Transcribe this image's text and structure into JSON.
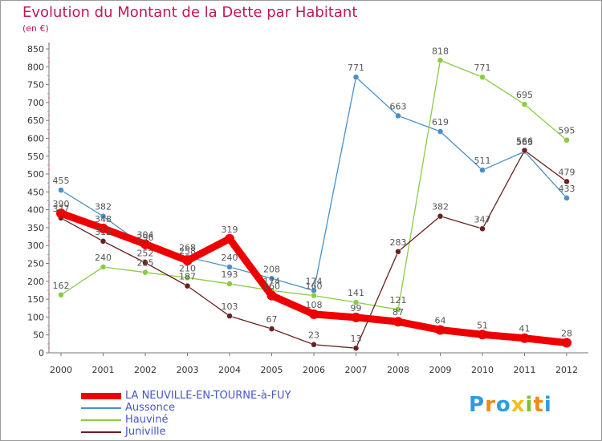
{
  "chart_data": {
    "type": "line",
    "title": "Evolution du Montant de la Dette par Habitant",
    "subtitle": "(en €)",
    "x": [
      "2000",
      "2001",
      "2002",
      "2003",
      "2004",
      "2005",
      "2006",
      "2007",
      "2008",
      "2009",
      "2010",
      "2011",
      "2012"
    ],
    "yticks": [
      "0",
      "50",
      "100",
      "150",
      "200",
      "250",
      "300",
      "350",
      "400",
      "450",
      "500",
      "550",
      "600",
      "650",
      "700",
      "750",
      "800",
      "850"
    ],
    "ylim": [
      0,
      850
    ],
    "grid": false,
    "legend_position": "bottom-left",
    "series": [
      {
        "name": "LA NEUVILLE-EN-TOURNE-à-FUY",
        "color": "#ee0000",
        "values": [
          390,
          348,
          304,
          258,
          319,
          160,
          108,
          99,
          87,
          64,
          51,
          41,
          28
        ]
      },
      {
        "name": "Aussonce",
        "color": "#4a90c8",
        "values": [
          455,
          382,
          296,
          268,
          240,
          208,
          174,
          771,
          663,
          619,
          511,
          563,
          433
        ]
      },
      {
        "name": "Hauviné",
        "color": "#88cc44",
        "values": [
          162,
          240,
          225,
          210,
          193,
          174,
          160,
          141,
          121,
          818,
          771,
          695,
          595
        ]
      },
      {
        "name": "Juniville",
        "color": "#6b2020",
        "values": [
          377,
          312,
          252,
          187,
          103,
          67,
          23,
          13,
          283,
          382,
          347,
          566,
          479
        ]
      }
    ]
  },
  "logo": {
    "letters": [
      "P",
      "r",
      "o",
      "x",
      "i",
      "t",
      "i"
    ],
    "colors": [
      "#2a9de0",
      "#f08a10",
      "#2a9de0",
      "#f0c020",
      "#7cc22a",
      "#f08a10",
      "#2a9de0"
    ]
  }
}
